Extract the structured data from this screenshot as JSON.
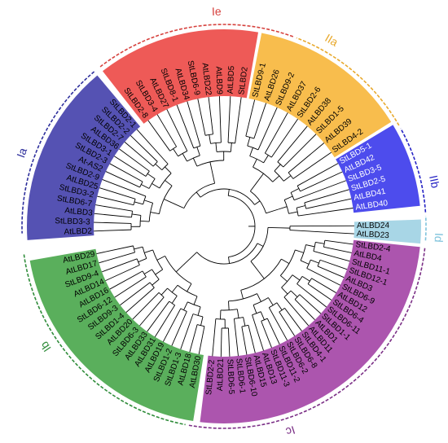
{
  "groups": [
    {
      "id": "Ia",
      "label": "Ia",
      "color": "#5552b3",
      "text_on": "#000000",
      "outer": "#2e2f9c",
      "leaves": [
        "AtLBD2",
        "StLBD3-3",
        "AtLBD3",
        "StLBD6-7",
        "StLBD3-2",
        "AtLBD25",
        "StLBD2-9",
        "At-AS2",
        "StLBD2-3",
        "StLBD3-1",
        "AtLBD36",
        "StLBD2-7",
        "StLBD2-2",
        "StLBD2-1"
      ]
    },
    {
      "id": "Ie",
      "label": "Ie",
      "color": "#ee5a57",
      "text_on": "#000000",
      "outer": "#d6423e",
      "leaves": [
        "StLBD2-8",
        "StLBD3-4",
        "AtLBD27",
        "StLBD8-1",
        "AtLBD34",
        "StLBD6-9",
        "AtLBD22",
        "AtLBD9",
        "AtLBD5",
        "StLBD2"
      ]
    },
    {
      "id": "IIa",
      "label": "IIa",
      "color": "#f8bd4d",
      "text_on": "#000000",
      "outer": "#e8a92d",
      "leaves": [
        "StLBD9-1",
        "AtLBD26",
        "StLBD9-2",
        "AtLBD37",
        "StLBD2-6",
        "AtLBD38",
        "StLBD1-5",
        "AtLBD39",
        "StLBD4-2"
      ]
    },
    {
      "id": "IIb",
      "label": "IIb",
      "color": "#4d4ced",
      "text_on": "#ffffff",
      "outer": "#2523c4",
      "leaves": [
        "StLBD5-1",
        "AtLBD42",
        "StLBD3-5",
        "StLBD2-5",
        "AtLBD41",
        "AtLBD40"
      ]
    },
    {
      "id": "Id",
      "label": "Id",
      "color": "#a8d6e6",
      "text_on": "#000000",
      "outer": "#7fc3dc",
      "leaves": [
        "AtLBD24",
        "AtLBD23"
      ]
    },
    {
      "id": "Ic",
      "label": "Ic",
      "color": "#ac55ae",
      "text_on": "#000000",
      "outer": "#7b2f86",
      "leaves": [
        "StLBD2-4",
        "AtLBD4",
        "StLBD11-1",
        "StLBD12-1",
        "AtLBD3",
        "StLBD6-9",
        "AtLBD12",
        "StLBD6-4",
        "StLBD6-11",
        "StLBD1-1",
        "AtLBD1",
        "AtLBD11",
        "StLBD4-1",
        "StLBD6-8",
        "StLBD6-2",
        "StLBD11-2",
        "StLBD11-3",
        "AtLBD13",
        "AtLBD15",
        "StLBD6-10",
        "StLBD6-1",
        "StLBD6-5",
        "AtLBD21",
        "StLBD2-2"
      ]
    },
    {
      "id": "Ib",
      "label": "Ib",
      "color": "#5aaf5c",
      "text_on": "#000000",
      "outer": "#2f8c3a",
      "leaves": [
        "AtLBD30",
        "AtLBD18",
        "StLBD1-3",
        "StLBD1-2",
        "AtLBD19",
        "AtLBD31",
        "AtLBD33",
        "StLBD6-3",
        "AtLBD20",
        "StLBD1-4",
        "StLBD9-3",
        "StLBD6-12",
        "AtLBD16",
        "AtLBD14",
        "StLBD9-4",
        "AtLBD17",
        "AtLBD29"
      ]
    }
  ]
}
